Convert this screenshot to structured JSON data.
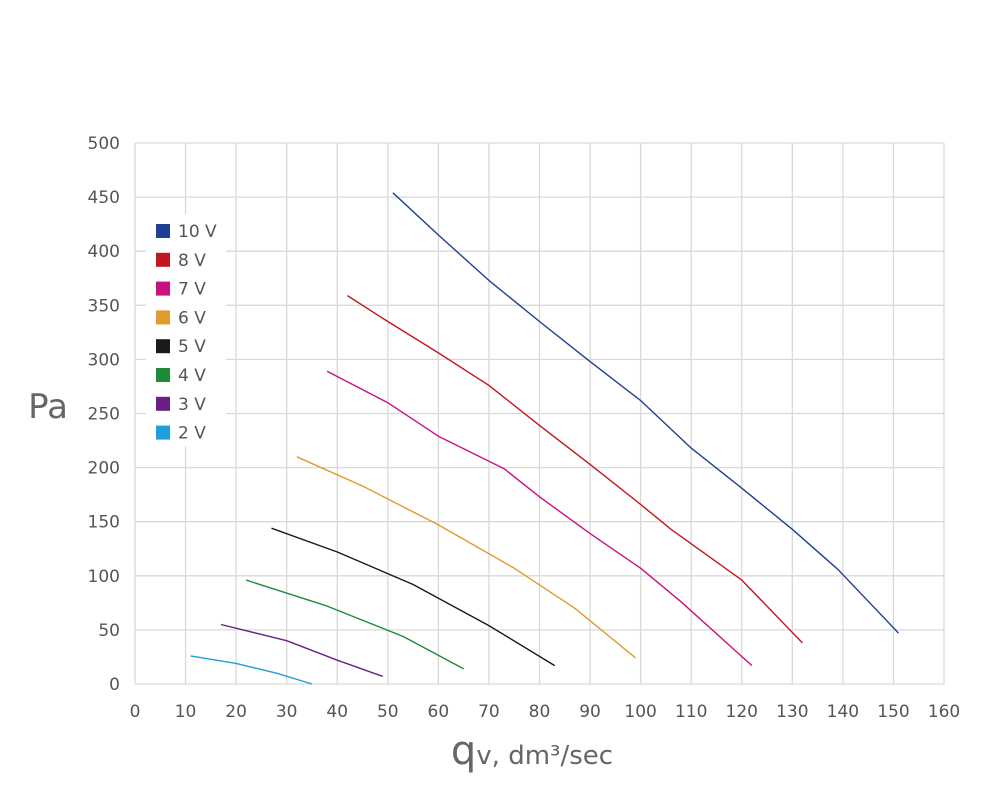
{
  "chart_data": {
    "type": "line",
    "title": "",
    "ylabel": "Pa",
    "xlabel": {
      "main": "q",
      "rest": "v, dm³/sec"
    },
    "xlim": [
      0,
      160
    ],
    "ylim": [
      0,
      500
    ],
    "xticks": [
      0,
      10,
      20,
      30,
      40,
      50,
      60,
      70,
      80,
      90,
      100,
      110,
      120,
      130,
      140,
      150,
      160
    ],
    "yticks": [
      0,
      50,
      100,
      150,
      200,
      250,
      300,
      350,
      400,
      450,
      500
    ],
    "grid": true,
    "legend_position": "top-left",
    "series": [
      {
        "name": "10 V",
        "color": "#1f3f94",
        "points": [
          [
            51,
            454
          ],
          [
            60,
            415
          ],
          [
            70,
            373
          ],
          [
            80,
            335
          ],
          [
            90,
            298
          ],
          [
            100,
            262
          ],
          [
            110,
            218
          ],
          [
            120,
            181
          ],
          [
            130,
            143
          ],
          [
            139,
            106
          ],
          [
            151,
            47
          ]
        ]
      },
      {
        "name": "8 V",
        "color": "#c0181e",
        "points": [
          [
            42,
            359
          ],
          [
            50,
            335
          ],
          [
            60,
            306
          ],
          [
            70,
            276
          ],
          [
            80,
            239
          ],
          [
            90,
            203
          ],
          [
            100,
            166
          ],
          [
            106,
            143
          ],
          [
            120,
            96
          ],
          [
            132,
            38
          ]
        ]
      },
      {
        "name": "7 V",
        "color": "#c8127e",
        "points": [
          [
            38,
            289
          ],
          [
            50,
            260
          ],
          [
            60,
            229
          ],
          [
            73,
            199
          ],
          [
            80,
            173
          ],
          [
            90,
            139
          ],
          [
            100,
            107
          ],
          [
            108,
            76
          ],
          [
            122,
            17
          ]
        ]
      },
      {
        "name": "6 V",
        "color": "#e09a2e",
        "points": [
          [
            32,
            210
          ],
          [
            45,
            183
          ],
          [
            60,
            147
          ],
          [
            75,
            107
          ],
          [
            87,
            70
          ],
          [
            99,
            24
          ]
        ]
      },
      {
        "name": "5 V",
        "color": "#1a1a1a",
        "points": [
          [
            27,
            144
          ],
          [
            40,
            122
          ],
          [
            55,
            92
          ],
          [
            70,
            54
          ],
          [
            83,
            17
          ]
        ]
      },
      {
        "name": "4 V",
        "color": "#1e8a3a",
        "points": [
          [
            22,
            96
          ],
          [
            38,
            72
          ],
          [
            53,
            44
          ],
          [
            65,
            14
          ]
        ]
      },
      {
        "name": "3 V",
        "color": "#6a1f82",
        "points": [
          [
            17,
            55
          ],
          [
            30,
            40
          ],
          [
            40,
            22
          ],
          [
            49,
            7
          ]
        ]
      },
      {
        "name": "2 V",
        "color": "#1f9fd9",
        "points": [
          [
            11,
            26
          ],
          [
            20,
            19
          ],
          [
            28,
            10
          ],
          [
            35,
            0
          ]
        ]
      }
    ]
  }
}
